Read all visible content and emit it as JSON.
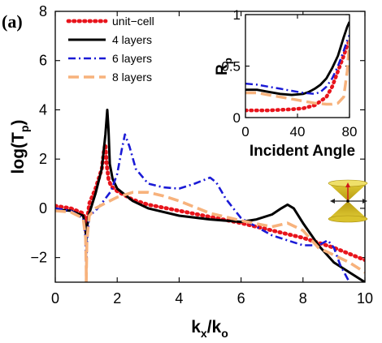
{
  "panel_label": "(a)",
  "chart_data": [
    {
      "type": "line",
      "title": "",
      "xlabel": "k_x/k_o",
      "ylabel": "log(T_p)",
      "xlim": [
        0,
        10
      ],
      "ylim": [
        -3,
        8
      ],
      "xticks": [
        "0",
        "2",
        "4",
        "6",
        "8",
        "10"
      ],
      "yticks": [
        "−2",
        "0",
        "2",
        "4",
        "6",
        "8"
      ],
      "legend_position": "top-left",
      "series": [
        {
          "name": "unit−cell",
          "color": "#e8141c",
          "style": "dotted",
          "x": [
            0,
            0.5,
            0.9,
            0.98,
            1.0,
            1.02,
            1.1,
            1.3,
            1.5,
            1.58,
            1.62,
            1.66,
            1.72,
            1.8,
            2.0,
            2.5,
            3.0,
            4.0,
            5.0,
            6.0,
            7.0,
            8.0,
            9.0,
            10.0
          ],
          "y": [
            0.1,
            0.0,
            -0.2,
            -0.5,
            -1.0,
            -0.6,
            0.2,
            0.8,
            1.6,
            2.4,
            2.6,
            1.8,
            1.2,
            0.9,
            0.7,
            0.35,
            0.15,
            -0.1,
            -0.35,
            -0.6,
            -0.9,
            -1.2,
            -1.6,
            -2.1
          ]
        },
        {
          "name": "4 layers",
          "color": "#000000",
          "style": "solid",
          "x": [
            0,
            0.5,
            0.9,
            0.98,
            1.0,
            1.02,
            1.1,
            1.3,
            1.5,
            1.62,
            1.68,
            1.72,
            1.76,
            1.85,
            2.0,
            2.5,
            3.0,
            4.0,
            5.0,
            6.0,
            6.5,
            7.0,
            7.3,
            7.5,
            7.7,
            8.0,
            8.5,
            9.0,
            9.5,
            10.0
          ],
          "y": [
            -0.05,
            -0.1,
            -0.3,
            -0.8,
            -1.3,
            -0.8,
            -0.2,
            0.6,
            1.6,
            3.0,
            4.0,
            3.2,
            1.8,
            1.2,
            0.8,
            0.3,
            0.0,
            -0.3,
            -0.45,
            -0.55,
            -0.45,
            -0.25,
            0.0,
            0.15,
            0.0,
            -0.6,
            -1.5,
            -2.2,
            -2.6,
            -3.0
          ]
        },
        {
          "name": "6 layers",
          "color": "#1a1ad6",
          "style": "dashdot",
          "x": [
            0,
            0.5,
            0.9,
            0.98,
            1.0,
            1.0,
            1.02,
            1.1,
            1.3,
            1.5,
            1.8,
            2.0,
            2.15,
            2.25,
            2.4,
            2.6,
            3.0,
            3.5,
            4.0,
            4.5,
            4.8,
            5.0,
            5.2,
            5.5,
            6.0,
            7.0,
            8.0,
            8.5,
            8.8,
            9.0,
            9.2,
            9.5
          ],
          "y": [
            0.0,
            -0.1,
            -0.4,
            -1.2,
            -2.6,
            -3.0,
            -1.5,
            -0.3,
            -0.1,
            0.2,
            0.7,
            1.4,
            2.4,
            3.0,
            2.5,
            1.6,
            1.0,
            0.85,
            0.8,
            1.0,
            1.15,
            1.25,
            1.05,
            0.4,
            -0.4,
            -1.1,
            -1.5,
            -1.5,
            -1.3,
            -1.6,
            -2.3,
            -3.0
          ]
        },
        {
          "name": "8 layers",
          "color": "#f7b27c",
          "style": "dashed",
          "x": [
            0,
            0.5,
            0.9,
            0.98,
            1.0,
            1.0,
            1.02,
            1.1,
            1.3,
            1.6,
            2.0,
            2.5,
            3.0,
            3.5,
            4.0,
            4.5,
            5.0,
            6.0,
            7.0,
            7.5,
            8.0,
            8.5,
            9.0,
            9.5,
            10.0
          ],
          "y": [
            -0.1,
            -0.15,
            -0.4,
            -1.2,
            -2.5,
            -3.0,
            -1.3,
            -0.3,
            0.0,
            0.2,
            0.45,
            0.65,
            0.65,
            0.5,
            0.3,
            0.05,
            -0.2,
            -0.5,
            -0.75,
            -0.6,
            -0.9,
            -1.6,
            -1.9,
            -2.2,
            -2.6
          ]
        }
      ]
    },
    {
      "type": "line",
      "title": "",
      "xlabel": "Incident Angle",
      "ylabel": "R_p",
      "xlim": [
        0,
        90
      ],
      "ylim": [
        0,
        1
      ],
      "xticks": [
        "0",
        "40",
        "80"
      ],
      "yticks": [
        "0",
        "0.5",
        "1"
      ],
      "series": [
        {
          "name": "unit−cell",
          "color": "#e8141c",
          "style": "dotted",
          "x": [
            0,
            20,
            40,
            50,
            60,
            70,
            75,
            80,
            85,
            88,
            90
          ],
          "y": [
            0.07,
            0.07,
            0.08,
            0.09,
            0.12,
            0.2,
            0.3,
            0.45,
            0.6,
            0.7,
            0.75
          ]
        },
        {
          "name": "4 layers",
          "color": "#000000",
          "style": "solid",
          "x": [
            0,
            10,
            20,
            30,
            40,
            50,
            55,
            60,
            65,
            70,
            75,
            80,
            85,
            88,
            90
          ],
          "y": [
            0.27,
            0.27,
            0.25,
            0.23,
            0.22,
            0.23,
            0.25,
            0.28,
            0.32,
            0.38,
            0.48,
            0.6,
            0.78,
            0.88,
            0.93
          ]
        },
        {
          "name": "6 layers",
          "color": "#1a1ad6",
          "style": "dashdot",
          "x": [
            0,
            10,
            20,
            30,
            40,
            50,
            60,
            65,
            70,
            75,
            80,
            85,
            88,
            90
          ],
          "y": [
            0.33,
            0.32,
            0.3,
            0.28,
            0.26,
            0.24,
            0.23,
            0.25,
            0.3,
            0.38,
            0.5,
            0.65,
            0.75,
            0.8
          ]
        },
        {
          "name": "8 layers",
          "color": "#f7b27c",
          "style": "dashed",
          "x": [
            0,
            10,
            20,
            30,
            40,
            50,
            60,
            70,
            75,
            80,
            85,
            88,
            90
          ],
          "y": [
            0.24,
            0.24,
            0.22,
            0.2,
            0.18,
            0.16,
            0.14,
            0.13,
            0.13,
            0.14,
            0.2,
            0.45,
            0.75
          ]
        }
      ]
    }
  ]
}
